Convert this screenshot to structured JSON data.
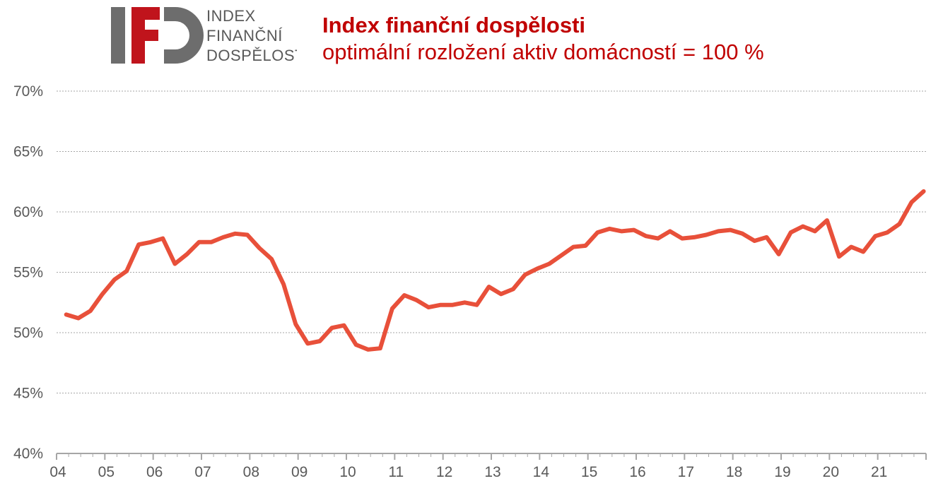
{
  "logo": {
    "mark_letters": "IFD",
    "lines": [
      "INDEX",
      "FINANČNÍ",
      "DOSPĚLOSTI"
    ],
    "colors": {
      "gray": "#6d6d6d",
      "red": "#c0141c"
    }
  },
  "header": {
    "title": "Index finanční dospělosti",
    "subtitle": "optimální rozložení aktiv domácností = 100 %"
  },
  "chart_data": {
    "type": "line",
    "title": "Index finanční dospělosti",
    "subtitle": "optimální rozložení aktiv domácností = 100 %",
    "xlabel": "",
    "ylabel": "",
    "ylim": [
      40,
      70
    ],
    "yticks": [
      40,
      45,
      50,
      55,
      60,
      65,
      70
    ],
    "ytick_labels": [
      "40%",
      "45%",
      "50%",
      "55%",
      "60%",
      "65%",
      "70%"
    ],
    "xlim": [
      2004,
      2022
    ],
    "xticks": [
      2004,
      2005,
      2006,
      2007,
      2008,
      2009,
      2010,
      2011,
      2012,
      2013,
      2014,
      2015,
      2016,
      2017,
      2018,
      2019,
      2020,
      2021
    ],
    "xtick_labels": [
      "04",
      "05",
      "06",
      "07",
      "08",
      "09",
      "10",
      "11",
      "12",
      "13",
      "14",
      "15",
      "16",
      "17",
      "18",
      "19",
      "20",
      "21"
    ],
    "grid": "horizontal dotted",
    "legend": "none",
    "line_color": "#e8503a",
    "series": [
      {
        "x": [
          2004.2,
          2004.45,
          2004.7,
          2004.95,
          2005.2,
          2005.45,
          2005.7,
          2005.95,
          2006.2,
          2006.45,
          2006.7,
          2006.95,
          2007.2,
          2007.45,
          2007.7,
          2007.95,
          2008.2,
          2008.45,
          2008.7,
          2008.95,
          2009.2,
          2009.45,
          2009.7,
          2009.95,
          2010.2,
          2010.45,
          2010.7,
          2010.95,
          2011.2,
          2011.45,
          2011.7,
          2011.95,
          2012.2,
          2012.45,
          2012.7,
          2012.95,
          2013.2,
          2013.45,
          2013.7,
          2013.95,
          2014.2,
          2014.45,
          2014.7,
          2014.95,
          2015.2,
          2015.45,
          2015.7,
          2015.95,
          2016.2,
          2016.45,
          2016.7,
          2016.95,
          2017.2,
          2017.45,
          2017.7,
          2017.95,
          2018.2,
          2018.45,
          2018.7,
          2018.95,
          2019.2,
          2019.45,
          2019.7,
          2019.95,
          2020.2,
          2020.45,
          2020.7,
          2020.95,
          2021.2,
          2021.45,
          2021.7,
          2021.95
        ],
        "values": [
          51.5,
          51.2,
          51.8,
          53.2,
          54.4,
          55.1,
          57.3,
          57.5,
          57.8,
          55.7,
          56.5,
          57.5,
          57.5,
          57.9,
          58.2,
          58.1,
          57.0,
          56.1,
          54.0,
          50.7,
          49.1,
          49.3,
          50.4,
          50.6,
          49.0,
          48.6,
          48.7,
          52.0,
          53.1,
          52.7,
          52.1,
          52.3,
          52.3,
          52.5,
          52.3,
          53.8,
          53.2,
          53.6,
          54.8,
          55.3,
          55.7,
          56.4,
          57.1,
          57.2,
          58.3,
          58.6,
          58.4,
          58.5,
          58.0,
          57.8,
          58.4,
          57.8,
          57.9,
          58.1,
          58.4,
          58.5,
          58.2,
          57.6,
          57.9,
          56.5,
          58.3,
          58.8,
          58.4,
          59.3,
          56.3,
          57.1,
          56.7,
          58.0,
          58.3,
          59.0,
          60.8,
          61.7
        ]
      }
    ]
  }
}
